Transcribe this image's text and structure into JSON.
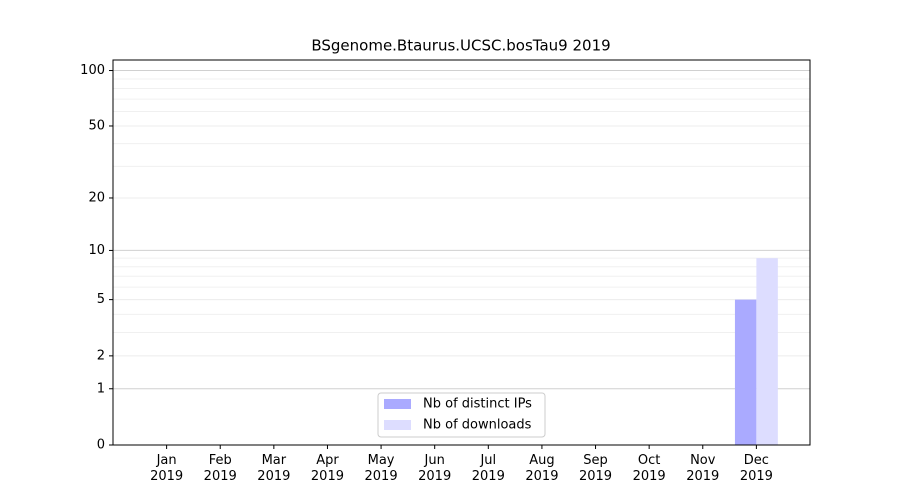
{
  "chart_data": {
    "type": "bar",
    "title": "BSgenome.Btaurus.UCSC.bosTau9 2019",
    "categories": [
      "Jan\n2019",
      "Feb\n2019",
      "Mar\n2019",
      "Apr\n2019",
      "May\n2019",
      "Jun\n2019",
      "Jul\n2019",
      "Aug\n2019",
      "Sep\n2019",
      "Oct\n2019",
      "Nov\n2019",
      "Dec\n2019"
    ],
    "series": [
      {
        "name": "Nb of distinct IPs",
        "color": "#aaaaff",
        "values": [
          0,
          0,
          0,
          0,
          0,
          0,
          0,
          0,
          0,
          0,
          0,
          5
        ]
      },
      {
        "name": "Nb of downloads",
        "color": "#ddddff",
        "values": [
          0,
          0,
          0,
          0,
          0,
          0,
          0,
          0,
          0,
          0,
          0,
          9
        ]
      }
    ],
    "yscale": "log1p",
    "ylim": [
      0,
      114
    ],
    "yticks": [
      0,
      1,
      2,
      5,
      10,
      20,
      50,
      100
    ],
    "yminor_ticks": [
      3,
      4,
      6,
      7,
      8,
      9,
      30,
      40,
      60,
      70,
      80,
      90
    ],
    "grid": true,
    "legend": "lower center"
  }
}
